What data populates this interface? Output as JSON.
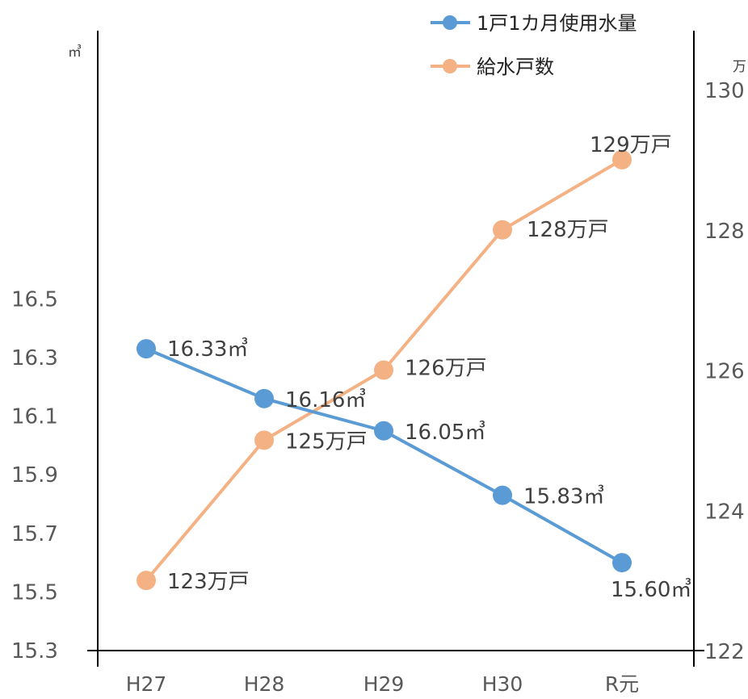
{
  "chart_data": {
    "type": "line",
    "categories": [
      "H27",
      "H28",
      "H29",
      "H30",
      "R元"
    ],
    "series": [
      {
        "name": "1戸1カ月使用水量",
        "axis": "left",
        "color": "#5B9BD5",
        "values": [
          16.33,
          16.16,
          16.05,
          15.83,
          15.6
        ],
        "labels": [
          "16.33㎥",
          "16.16㎥",
          "16.05㎥",
          "15.83㎥",
          "15.60㎥"
        ]
      },
      {
        "name": "給水戸数",
        "axis": "right",
        "color": "#F4B183",
        "values": [
          123,
          125,
          126,
          128,
          129
        ],
        "labels": [
          "123万戸",
          "125万戸",
          "126万戸",
          "128万戸",
          "129万戸"
        ]
      }
    ],
    "y_left": {
      "unit": "㎥",
      "range": [
        15.3,
        16.6
      ],
      "ticks": [
        "16.5",
        "16.3",
        "16.1",
        "15.9",
        "15.7",
        "15.5",
        "15.3"
      ],
      "tick_values": [
        16.5,
        16.3,
        16.1,
        15.9,
        15.7,
        15.5,
        15.3
      ]
    },
    "y_right": {
      "unit": "万",
      "range": [
        122,
        131
      ],
      "ticks": [
        "130",
        "128",
        "126",
        "124",
        "122"
      ],
      "tick_values": [
        130,
        128,
        126,
        124,
        122
      ]
    },
    "grid": false,
    "legend_position": "top-right"
  }
}
